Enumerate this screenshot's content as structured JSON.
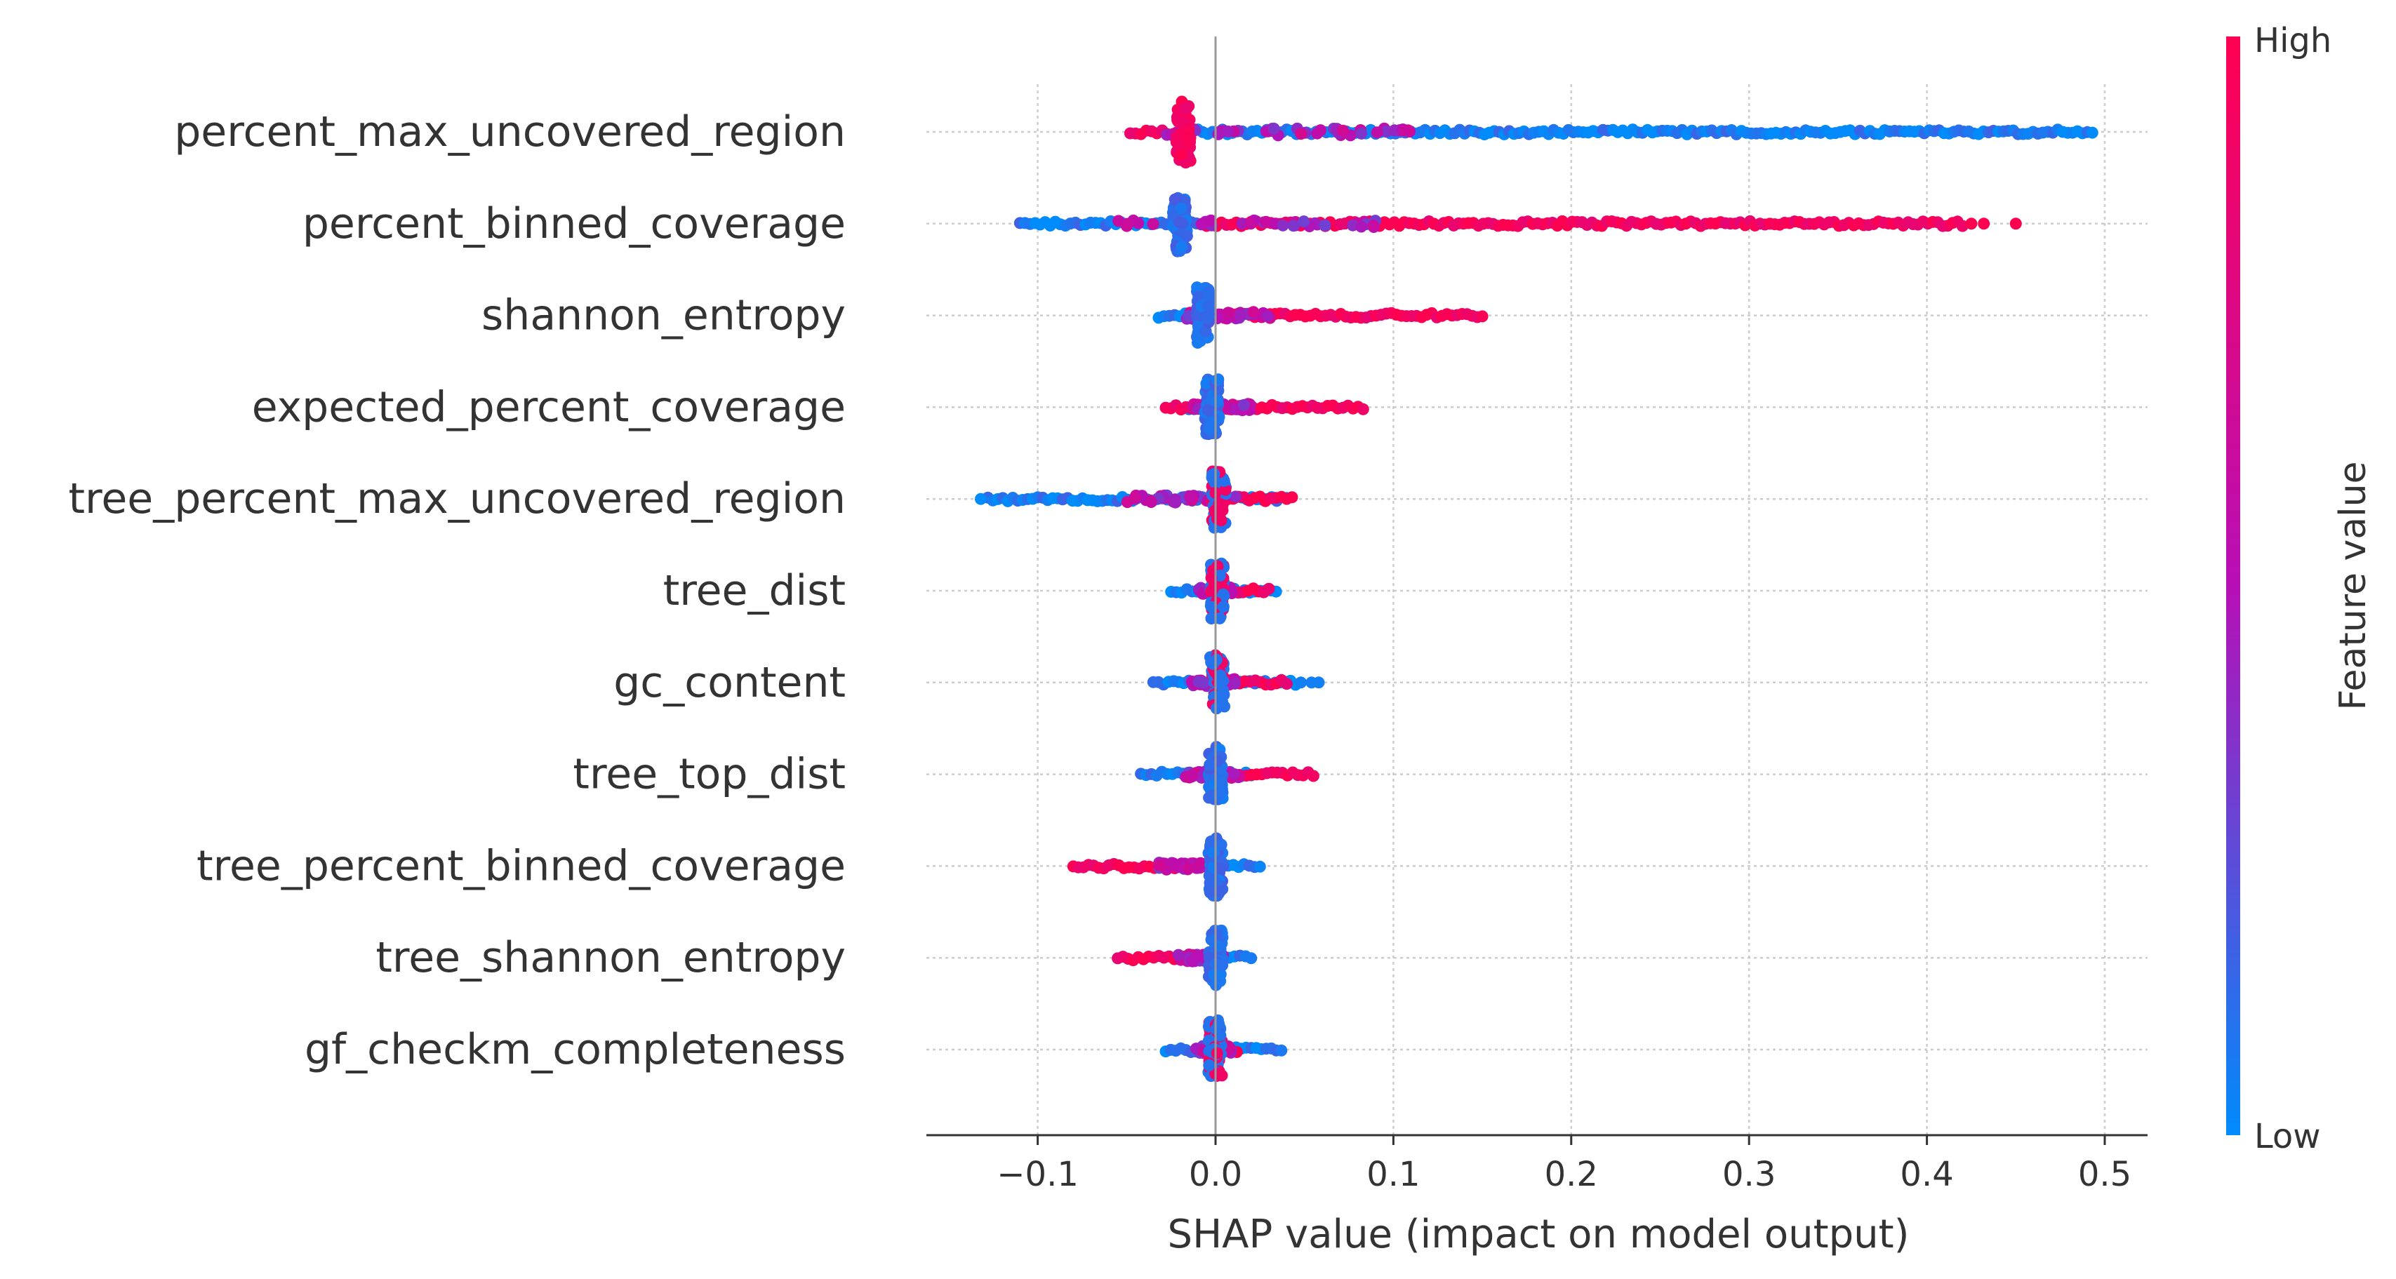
{
  "chart_data": {
    "type": "scatter",
    "subtype": "shap-beeswarm",
    "xlabel": "SHAP value (impact on model output)",
    "xlim": [
      -0.16,
      0.525
    ],
    "x_ticks": [
      -0.1,
      0.0,
      0.1,
      0.2,
      0.3,
      0.4,
      0.5
    ],
    "x_tick_labels": [
      "−0.1",
      "0.0",
      "0.1",
      "0.2",
      "0.3",
      "0.4",
      "0.5"
    ],
    "grid": true,
    "colorbar": {
      "title": "Feature value",
      "high_label": "High",
      "low_label": "Low",
      "high_color": "#ff0051",
      "mid_color": "#b70fb6",
      "low_color": "#008bfb",
      "placement": "right"
    },
    "features": [
      {
        "name": "percent_max_uncovered_region",
        "low_range": [
          -0.01,
          0.493
        ],
        "high_range": [
          -0.048,
          -0.012
        ],
        "center": -0.018,
        "peak_half_height": 0.95
      },
      {
        "name": "percent_binned_coverage",
        "low_range": [
          -0.11,
          -0.005
        ],
        "high_range": [
          -0.005,
          0.42
        ],
        "outliers": [
          0.425,
          0.432,
          0.45
        ],
        "center": -0.02,
        "peak_half_height": 0.9
      },
      {
        "name": "shannon_entropy",
        "low_range": [
          -0.032,
          0.01
        ],
        "high_range": [
          0.005,
          0.15
        ],
        "center": -0.007,
        "peak_half_height": 0.85
      },
      {
        "name": "expected_percent_coverage",
        "low_range": [
          -0.015,
          0.02
        ],
        "high_range": [
          -0.028,
          0.083
        ],
        "center": -0.002,
        "peak_half_height": 0.85
      },
      {
        "name": "tree_percent_max_uncovered_region",
        "low_range": [
          -0.128,
          0.04
        ],
        "high_range": [
          -0.005,
          0.043
        ],
        "outliers": [
          -0.132
        ],
        "center": 0.002,
        "peak_half_height": 0.9
      },
      {
        "name": "tree_dist",
        "low_range": [
          -0.025,
          0.034
        ],
        "high_range": [
          -0.005,
          0.03
        ],
        "center": 0.001,
        "peak_half_height": 0.85
      },
      {
        "name": "gc_content",
        "low_range": [
          -0.035,
          0.045
        ],
        "high_range": [
          -0.01,
          0.04
        ],
        "outliers": [
          0.048,
          0.054,
          0.058
        ],
        "center": 0.001,
        "peak_half_height": 0.85
      },
      {
        "name": "tree_top_dist",
        "low_range": [
          -0.042,
          0.02
        ],
        "high_range": [
          -0.003,
          0.055
        ],
        "center": 0.0,
        "peak_half_height": 0.85
      },
      {
        "name": "tree_percent_binned_coverage",
        "low_range": [
          -0.005,
          0.025
        ],
        "high_range": [
          -0.08,
          -0.003
        ],
        "center": 0.0,
        "peak_half_height": 0.9
      },
      {
        "name": "tree_shannon_entropy",
        "low_range": [
          -0.005,
          0.02
        ],
        "high_range": [
          -0.055,
          -0.003
        ],
        "center": 0.0,
        "peak_half_height": 0.85
      },
      {
        "name": "gf_checkm_completeness",
        "low_range": [
          -0.028,
          0.037
        ],
        "high_range": [
          -0.008,
          0.012
        ],
        "center": 0.0,
        "peak_half_height": 0.9
      }
    ]
  }
}
